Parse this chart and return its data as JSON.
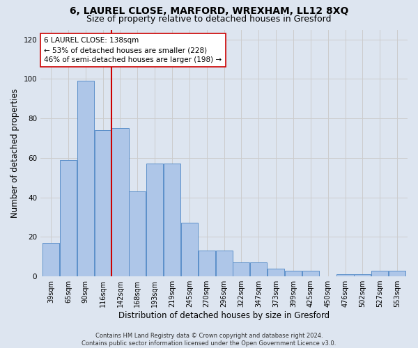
{
  "title": "6, LAUREL CLOSE, MARFORD, WREXHAM, LL12 8XQ",
  "subtitle": "Size of property relative to detached houses in Gresford",
  "xlabel": "Distribution of detached houses by size in Gresford",
  "ylabel": "Number of detached properties",
  "categories": [
    "39sqm",
    "65sqm",
    "90sqm",
    "116sqm",
    "142sqm",
    "168sqm",
    "193sqm",
    "219sqm",
    "245sqm",
    "270sqm",
    "296sqm",
    "322sqm",
    "347sqm",
    "373sqm",
    "399sqm",
    "425sqm",
    "450sqm",
    "476sqm",
    "502sqm",
    "527sqm",
    "553sqm"
  ],
  "values": [
    17,
    59,
    99,
    74,
    75,
    43,
    57,
    57,
    27,
    13,
    13,
    7,
    7,
    4,
    3,
    3,
    0,
    1,
    1,
    3,
    3
  ],
  "bar_color": "#aec6e8",
  "bar_edge_color": "#5b8fc9",
  "vline_color": "#cc0000",
  "annotation_text": "6 LAUREL CLOSE: 138sqm\n← 53% of detached houses are smaller (228)\n46% of semi-detached houses are larger (198) →",
  "annotation_box_color": "#ffffff",
  "annotation_box_edge": "#cc0000",
  "ylim": [
    0,
    125
  ],
  "yticks": [
    0,
    20,
    40,
    60,
    80,
    100,
    120
  ],
  "grid_color": "#cccccc",
  "bg_color": "#dde5f0",
  "footer": "Contains HM Land Registry data © Crown copyright and database right 2024.\nContains public sector information licensed under the Open Government Licence v3.0.",
  "title_fontsize": 10,
  "subtitle_fontsize": 9,
  "tick_fontsize": 7,
  "ylabel_fontsize": 8.5,
  "xlabel_fontsize": 8.5,
  "footer_fontsize": 6
}
